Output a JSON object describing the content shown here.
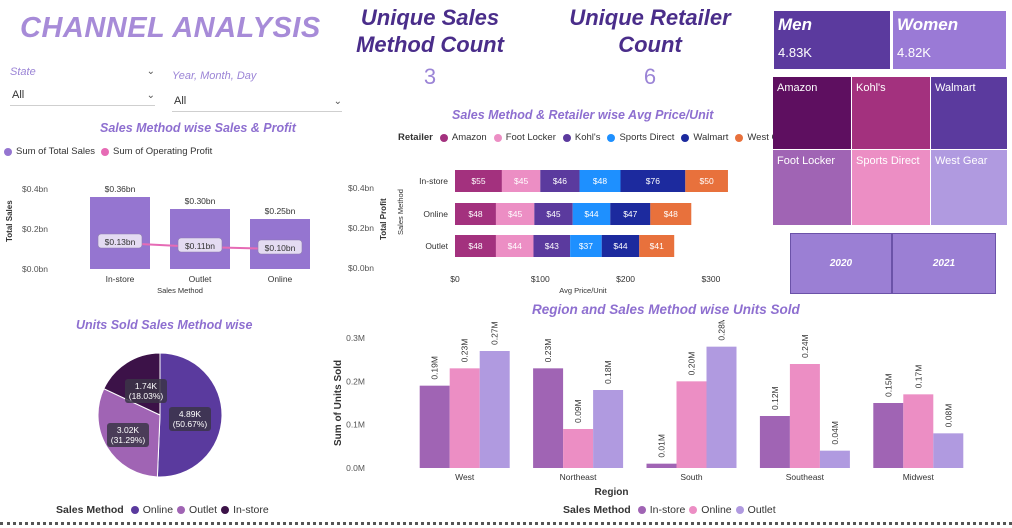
{
  "header": {
    "title": "CHANNEL ANALYSIS"
  },
  "kpi": [
    {
      "title": "Unique Sales Method Count",
      "value": "3"
    },
    {
      "title": "Unique Retailer Count",
      "value": "6"
    }
  ],
  "filters": {
    "state": {
      "label": "State",
      "value": "All"
    },
    "date": {
      "label": "Year, Month, Day",
      "value": "All"
    }
  },
  "gender": {
    "men": {
      "label": "Men",
      "value": "4.83K"
    },
    "women": {
      "label": "Women",
      "value": "4.82K"
    }
  },
  "retailers": [
    "Amazon",
    "Kohl's",
    "Walmart",
    "Foot Locker",
    "Sports Direct",
    "West Gear"
  ],
  "years": [
    "2020",
    "2021"
  ],
  "colors": {
    "accent": "#9b7fd4",
    "amazon": "#a3317e",
    "footlocker": "#ec8ec4",
    "kohls": "#5b3a9e",
    "sportsdirect": "#1e90ff",
    "walmart": "#1c2a9e",
    "westgear": "#e8713c",
    "sales": "#9575d0",
    "profit": "#e66bb5",
    "instore": "#a064b4",
    "online": "#ec8ec4",
    "outlet": "#b09ae0",
    "pie_online": "#5a3a9e",
    "pie_outlet": "#a064b4",
    "pie_instore": "#3c1248"
  },
  "chart_data": [
    {
      "type": "bar",
      "title": "Sales Method wise Sales & Profit",
      "categories": [
        "In-store",
        "Outlet",
        "Online"
      ],
      "xlabel": "Sales Method",
      "ylabel": "Total Sales",
      "y2label": "Total Profit",
      "yticks": [
        "$0.0bn",
        "$0.2bn",
        "$0.4bn"
      ],
      "ylim": [
        0,
        0.4
      ],
      "series": [
        {
          "name": "Sum of Total Sales",
          "values": [
            0.36,
            0.3,
            0.25
          ],
          "labels": [
            "$0.36bn",
            "$0.30bn",
            "$0.25bn"
          ]
        },
        {
          "name": "Sum of Operating Profit",
          "values": [
            0.13,
            0.11,
            0.1
          ],
          "labels": [
            "$0.13bn",
            "$0.11bn",
            "$0.10bn"
          ]
        }
      ]
    },
    {
      "type": "bar",
      "title": "Sales Method & Retailer wise Avg Price/Unit",
      "legend_title": "Retailer",
      "categories": [
        "In-store",
        "Online",
        "Outlet"
      ],
      "ylabel": "Sales Method",
      "xlabel": "Avg Price/Unit",
      "xticks": [
        "$0",
        "$100",
        "$200",
        "$300"
      ],
      "xlim": [
        0,
        300
      ],
      "series": [
        {
          "name": "Amazon",
          "values": [
            55,
            48,
            48
          ]
        },
        {
          "name": "Foot Locker",
          "values": [
            45,
            45,
            44
          ]
        },
        {
          "name": "Kohl's",
          "values": [
            46,
            45,
            43
          ]
        },
        {
          "name": "Sports Direct",
          "values": [
            48,
            44,
            37
          ]
        },
        {
          "name": "Walmart",
          "values": [
            76,
            47,
            44
          ]
        },
        {
          "name": "West Gear",
          "values": [
            50,
            48,
            41
          ]
        }
      ]
    },
    {
      "type": "pie",
      "title": "Units Sold Sales Method wise",
      "legend_title": "Sales Method",
      "categories": [
        "Online",
        "Outlet",
        "In-store"
      ],
      "values": [
        4.89,
        3.02,
        1.74
      ],
      "labels": [
        "4.89K\n(50.67%)",
        "3.02K\n(31.29%)",
        "1.74K\n(18.03%)"
      ]
    },
    {
      "type": "bar",
      "title": "Region and Sales Method wise Units Sold",
      "legend_title": "Sales Method",
      "xlabel": "Region",
      "ylabel": "Sum of Units Sold",
      "categories": [
        "West",
        "Northeast",
        "South",
        "Southeast",
        "Midwest"
      ],
      "yticks": [
        "0.0M",
        "0.1M",
        "0.2M",
        "0.3M"
      ],
      "ylim": [
        0,
        0.3
      ],
      "series": [
        {
          "name": "In-store",
          "values": [
            0.19,
            0.23,
            0.01,
            0.12,
            0.15
          ],
          "labels": [
            "0.19M",
            "0.23M",
            "0.01M",
            "0.12M",
            "0.15M"
          ]
        },
        {
          "name": "Online",
          "values": [
            0.23,
            0.09,
            0.2,
            0.24,
            0.17
          ],
          "labels": [
            "0.23M",
            "0.09M",
            "0.20M",
            "0.24M",
            "0.17M"
          ]
        },
        {
          "name": "Outlet",
          "values": [
            0.27,
            0.18,
            0.28,
            0.04,
            0.08
          ],
          "labels": [
            "0.27M",
            "0.18M",
            "0.28M",
            "0.04M",
            "0.08M"
          ]
        }
      ]
    }
  ]
}
